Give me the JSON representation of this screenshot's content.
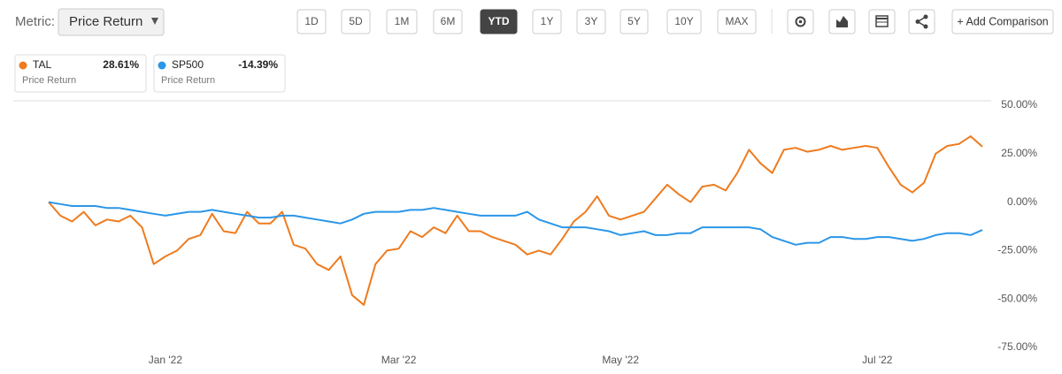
{
  "toolbar": {
    "metric_label": "Metric:",
    "metric_value": "Price Return",
    "periods": [
      "1D",
      "5D",
      "1M",
      "6M",
      "YTD",
      "1Y",
      "3Y",
      "5Y",
      "10Y",
      "MAX"
    ],
    "active_period": "YTD",
    "add_button": "+ Add Comparison"
  },
  "chart_data": {
    "type": "line",
    "categories": [
      null,
      null,
      null,
      null,
      null,
      null,
      null,
      null,
      null,
      null,
      "Jan '22",
      null,
      null,
      null,
      null,
      null,
      null,
      null,
      null,
      null,
      null,
      null,
      null,
      null,
      null,
      null,
      null,
      null,
      null,
      null,
      "Mar '22",
      null,
      null,
      null,
      null,
      null,
      null,
      null,
      null,
      null,
      null,
      null,
      null,
      null,
      null,
      null,
      null,
      null,
      null,
      "May '22",
      null,
      null,
      null,
      null,
      null,
      null,
      null,
      null,
      null,
      null,
      null,
      null,
      null,
      null,
      null,
      null,
      null,
      null,
      null,
      null,
      null,
      "Jul '22",
      null,
      null,
      null,
      null,
      null,
      null,
      null,
      null,
      null
    ],
    "series": [
      {
        "name": "TAL",
        "change": "28.61%",
        "metric": "Price Return",
        "color": "#ee7b1f",
        "values": [
          0,
          -7,
          -10,
          -5,
          -12,
          -9,
          -10,
          -7,
          -13,
          -32,
          -28,
          -25,
          -19,
          -17,
          -6,
          -15,
          -16,
          -5,
          -11,
          -11,
          -5,
          -22,
          -24,
          -32,
          -35,
          -28,
          -48,
          -53,
          -32,
          -25,
          -24,
          -15,
          -18,
          -13,
          -16,
          -7,
          -15,
          -15,
          -18,
          -20,
          -22,
          -27,
          -25,
          -27,
          -19,
          -10,
          -5,
          3,
          -7,
          -9,
          -7,
          -5,
          2,
          9,
          4,
          0,
          8,
          9,
          6,
          15,
          27,
          20,
          15,
          27,
          28,
          26,
          27,
          29,
          27,
          28,
          29,
          28,
          18,
          9,
          5,
          10,
          25,
          29,
          30,
          34,
          28.61
        ]
      },
      {
        "name": "SP500",
        "change": "-14.39%",
        "metric": "Price Return",
        "color": "#2b96e8",
        "values": [
          0,
          -1,
          -2,
          -2,
          -2,
          -3,
          -3,
          -4,
          -5,
          -6,
          -7,
          -6,
          -5,
          -5,
          -4,
          -5,
          -6,
          -7,
          -8,
          -8,
          -7,
          -7,
          -8,
          -9,
          -10,
          -11,
          -9,
          -6,
          -5,
          -5,
          -5,
          -4,
          -4,
          -3,
          -4,
          -5,
          -6,
          -7,
          -7,
          -7,
          -7,
          -5,
          -9,
          -11,
          -13,
          -13,
          -13,
          -14,
          -15,
          -17,
          -16,
          -15,
          -17,
          -17,
          -16,
          -16,
          -13,
          -13,
          -13,
          -13,
          -13,
          -14,
          -18,
          -20,
          -22,
          -21,
          -21,
          -18,
          -18,
          -19,
          -19,
          -18,
          -18,
          -19,
          -20,
          -19,
          -17,
          -16,
          -16,
          -17,
          -14.39
        ]
      }
    ],
    "ylim": [
      -75,
      50
    ],
    "yticks": [
      {
        "value": 50,
        "label": "50.00%"
      },
      {
        "value": 25,
        "label": "25.00%"
      },
      {
        "value": 0,
        "label": "0.00%"
      },
      {
        "value": -25,
        "label": "-25.00%"
      },
      {
        "value": -50,
        "label": "-50.00%"
      },
      {
        "value": -75,
        "label": "-75.00%"
      }
    ],
    "grid": false
  }
}
